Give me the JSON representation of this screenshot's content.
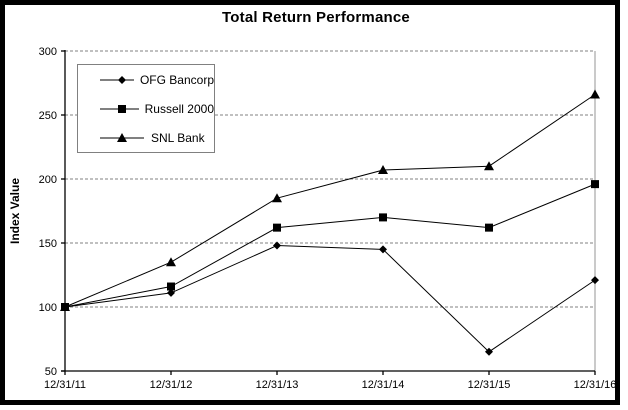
{
  "chart_data": {
    "type": "line",
    "title": "Total Return Performance",
    "ylabel": "Index Value",
    "xlabel": "",
    "categories": [
      "12/31/11",
      "12/31/12",
      "12/31/13",
      "12/31/14",
      "12/31/15",
      "12/31/16"
    ],
    "series": [
      {
        "name": "OFG Bancorp",
        "marker": "diamond",
        "values": [
          100,
          111,
          148,
          145,
          65,
          121
        ]
      },
      {
        "name": "Russell 2000",
        "marker": "square",
        "values": [
          100,
          116,
          162,
          170,
          162,
          196
        ]
      },
      {
        "name": "SNL Bank",
        "marker": "triangle",
        "values": [
          100,
          135,
          185,
          207,
          210,
          266
        ]
      }
    ],
    "ylim": [
      50,
      300
    ],
    "yticks": [
      50,
      100,
      150,
      200,
      250,
      300
    ],
    "grid": "dashed-horizontal",
    "legend_position": "top-left",
    "line_color": "#000000",
    "marker_color": "#000000",
    "grid_color": "#808080",
    "plot_border_color": "#a6a6a6",
    "frame_color": "#000000"
  }
}
